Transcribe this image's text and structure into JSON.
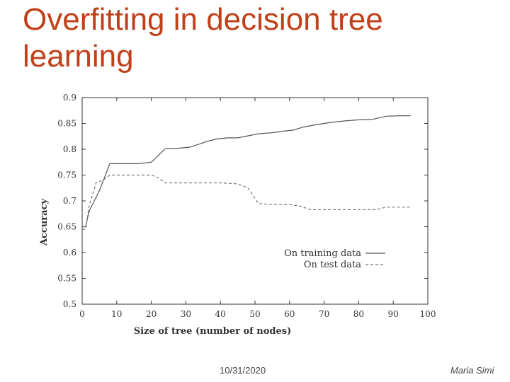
{
  "slide": {
    "title": "Overfitting in decision tree learning",
    "date": "10/31/2020",
    "author": "Maria Simi"
  },
  "chart_data": {
    "type": "line",
    "title": "",
    "xlabel": "Size of tree (number of nodes)",
    "ylabel": "Accuracy",
    "xlim": [
      0,
      100
    ],
    "ylim": [
      0.5,
      0.9
    ],
    "xticks": [
      0,
      10,
      20,
      30,
      40,
      50,
      60,
      70,
      80,
      90,
      100
    ],
    "yticks": [
      0.5,
      0.55,
      0.6,
      0.65,
      0.7,
      0.75,
      0.8,
      0.85,
      0.9
    ],
    "grid": false,
    "legend_position": "lower-right",
    "series": [
      {
        "name": "On training data",
        "style": "solid",
        "color": "#555555",
        "x": [
          0,
          1,
          2,
          5,
          8,
          12,
          16,
          20,
          22,
          24,
          28,
          31,
          33,
          36,
          39,
          42,
          45,
          48,
          51,
          55,
          58,
          61,
          64,
          68,
          72,
          76,
          80,
          84,
          88,
          92,
          95
        ],
        "y": [
          0.65,
          0.65,
          0.68,
          0.72,
          0.772,
          0.772,
          0.772,
          0.775,
          0.788,
          0.801,
          0.802,
          0.804,
          0.808,
          0.815,
          0.82,
          0.822,
          0.822,
          0.826,
          0.83,
          0.832,
          0.835,
          0.837,
          0.843,
          0.848,
          0.852,
          0.855,
          0.857,
          0.858,
          0.864,
          0.865,
          0.865
        ]
      },
      {
        "name": "On test data",
        "style": "dashed",
        "color": "#777777",
        "x": [
          0,
          1,
          2,
          4,
          6,
          8,
          12,
          16,
          20,
          22,
          24,
          28,
          32,
          36,
          40,
          45,
          48,
          51,
          55,
          60,
          63,
          66,
          70,
          74,
          78,
          82,
          85,
          88,
          92,
          95
        ],
        "y": [
          0.645,
          0.645,
          0.69,
          0.735,
          0.74,
          0.75,
          0.75,
          0.75,
          0.75,
          0.745,
          0.735,
          0.735,
          0.735,
          0.735,
          0.735,
          0.733,
          0.725,
          0.695,
          0.693,
          0.693,
          0.69,
          0.683,
          0.683,
          0.683,
          0.683,
          0.683,
          0.683,
          0.688,
          0.688,
          0.688
        ]
      }
    ]
  }
}
